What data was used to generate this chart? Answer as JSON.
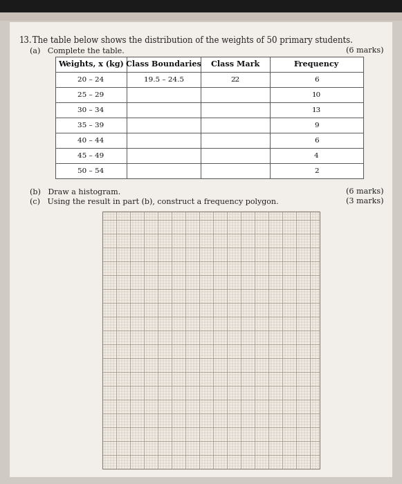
{
  "bg_color": "#d0cac4",
  "page_bg": "#f2eeea",
  "top_bar_color": "#1a1a1a",
  "top_bar_height": 18,
  "browser_bar_color": "#c8c0b8",
  "browser_bar_height": 12,
  "title_number": "13.",
  "title_text": " The table below shows the distribution of the weights of 50 primary students.",
  "subtitle": "(a)   Complete the table.",
  "marks_a": "(6 marks)",
  "col_headers": [
    "Weights, x (kg)",
    "Class Boundaries",
    "Class Mark",
    "Frequency"
  ],
  "rows": [
    [
      "20 – 24",
      "19.5 – 24.5",
      "22",
      "6"
    ],
    [
      "25 – 29",
      "",
      "",
      "10"
    ],
    [
      "30 – 34",
      "",
      "",
      "13"
    ],
    [
      "35 – 39",
      "",
      "",
      "9"
    ],
    [
      "40 – 44",
      "",
      "",
      "6"
    ],
    [
      "45 – 49",
      "",
      "",
      "4"
    ],
    [
      "50 – 54",
      "",
      "",
      "2"
    ]
  ],
  "part_b_text": "(b)   Draw a histogram.",
  "part_b_marks": "(6 marks)",
  "part_c_text": "(c)   Using the result in part (b), construct a frequency polygon.",
  "part_c_marks": "(3 marks)",
  "grid_color": "#c0afa0",
  "grid_major_color": "#a09080",
  "font_size_title": 8.5,
  "font_size_body": 8.0,
  "font_size_header": 8.0,
  "font_size_cell": 7.5
}
